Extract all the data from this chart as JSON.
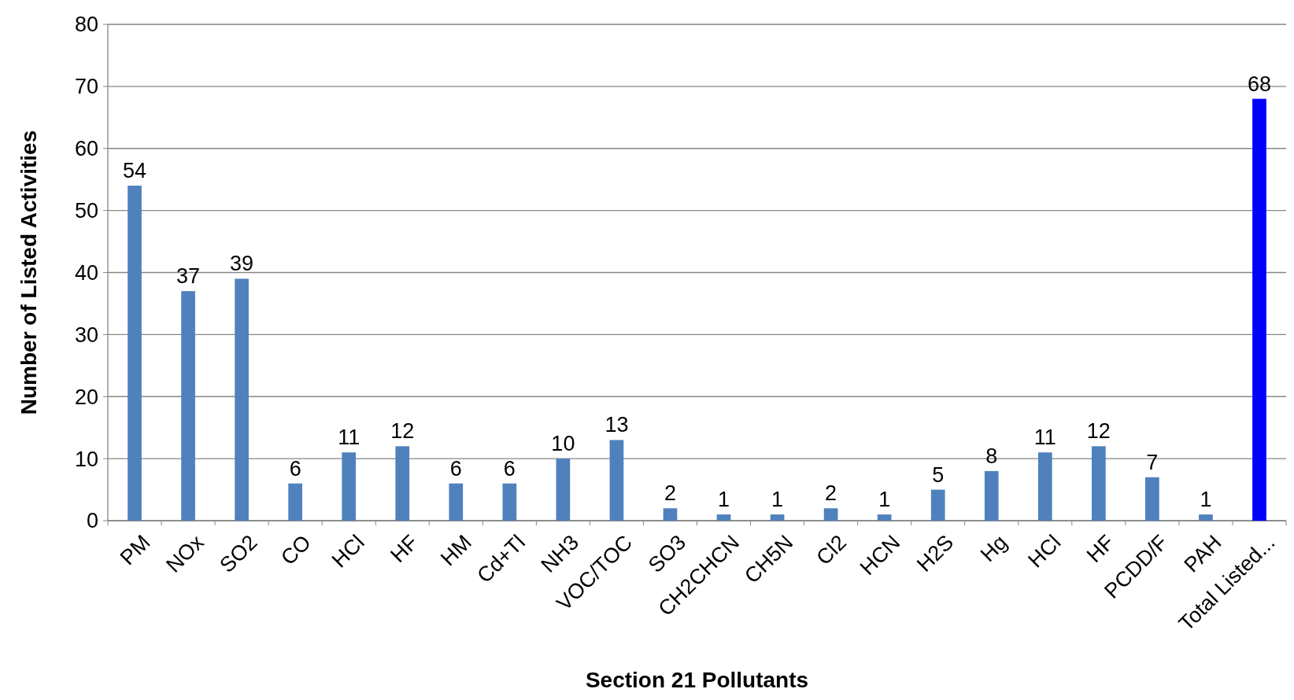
{
  "chart_data": {
    "type": "bar",
    "xlabel": "Section 21 Pollutants",
    "ylabel": "Number of Listed Activities",
    "categories": [
      "PM",
      "NOx",
      "SO2",
      "CO",
      "HCl",
      "HF",
      "HM",
      "Cd+Tl",
      "NH3",
      "VOC/TOC",
      "SO3",
      "CH2CHCN",
      "CH5N",
      "Cl2",
      "HCN",
      "H2S",
      "Hg",
      "HCl",
      "HF",
      "PCDD/F",
      "PAH",
      "Total Listed..."
    ],
    "values": [
      54,
      37,
      39,
      6,
      11,
      12,
      6,
      6,
      10,
      13,
      2,
      1,
      1,
      2,
      1,
      5,
      8,
      11,
      12,
      7,
      1,
      68
    ],
    "colors": [
      "#4f81bd",
      "#4f81bd",
      "#4f81bd",
      "#4f81bd",
      "#4f81bd",
      "#4f81bd",
      "#4f81bd",
      "#4f81bd",
      "#4f81bd",
      "#4f81bd",
      "#4f81bd",
      "#4f81bd",
      "#4f81bd",
      "#4f81bd",
      "#4f81bd",
      "#4f81bd",
      "#4f81bd",
      "#4f81bd",
      "#4f81bd",
      "#4f81bd",
      "#4f81bd",
      "#0000ff"
    ],
    "ylim": [
      0,
      80
    ],
    "yticks": [
      0,
      10,
      20,
      30,
      40,
      50,
      60,
      70,
      80
    ],
    "grid": "y",
    "data_labels": true
  }
}
